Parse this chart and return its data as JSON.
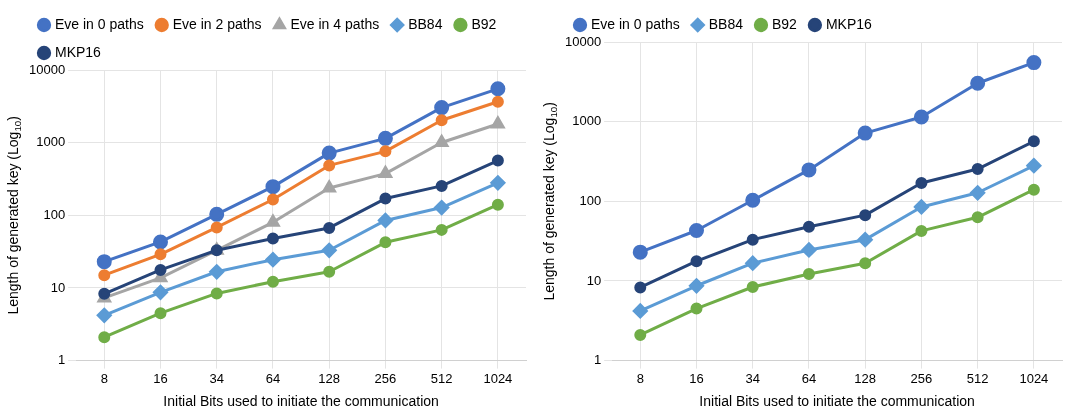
{
  "chart_data": [
    {
      "type": "line",
      "xlabel": "Initial Bits used to initiate the communication",
      "ylabel": "Length of generated key (Log$_{10}$)",
      "categories": [
        "8",
        "16",
        "34",
        "64",
        "128",
        "256",
        "512",
        "1024"
      ],
      "log": "y",
      "ylim": [
        1,
        10000
      ],
      "yticks": [
        1,
        10,
        100,
        1000,
        10000
      ],
      "grid": true,
      "legend": "top",
      "line_style": "solid",
      "series": [
        {
          "name": "Eve in 0 paths",
          "color": "#4472c4",
          "marker": "circle",
          "values": [
            23,
            43,
            103,
            248,
            718,
            1146,
            3035,
            5510
          ]
        },
        {
          "name": "Eve in 2 paths",
          "color": "#ed7d31",
          "marker": "circle",
          "values": [
            15,
            29,
            68,
            165,
            486,
            759,
            2033,
            3650
          ]
        },
        {
          "name": "Eve in 4 paths",
          "color": "#a5a5a5",
          "marker": "triangle",
          "values": [
            7.3,
            13.8,
            33,
            80,
            238,
            375,
            1005,
            1805
          ]
        },
        {
          "name": "BB84",
          "color": "#5b9bd5",
          "marker": "diamond",
          "values": [
            4.2,
            8.7,
            16.7,
            24.5,
            33,
            85,
            128,
            280
          ]
        },
        {
          "name": "B92",
          "color": "#70ad47",
          "marker": "circle",
          "values": [
            2.1,
            4.5,
            8.4,
            12.2,
            16.7,
            42.5,
            63,
            140
          ]
        },
        {
          "name": "MKP16",
          "color": "#264478",
          "marker": "circle",
          "values": [
            8.3,
            17.7,
            33,
            48,
            67,
            170,
            254,
            566
          ]
        }
      ]
    },
    {
      "type": "line",
      "xlabel": "Initial Bits used to initiate the communication",
      "ylabel": "Length of generated key (Log$_{10}$)",
      "categories": [
        "8",
        "16",
        "34",
        "64",
        "128",
        "256",
        "512",
        "1024"
      ],
      "log": "y",
      "ylim": [
        1,
        10000
      ],
      "yticks": [
        1,
        10,
        100,
        1000,
        10000
      ],
      "grid": true,
      "legend": "top",
      "line_style": "solid",
      "series": [
        {
          "name": "Eve in 0 paths",
          "color": "#4472c4",
          "marker": "circle",
          "values": [
            23,
            43,
            103,
            248,
            718,
            1146,
            3035,
            5510
          ]
        },
        {
          "name": "BB84",
          "color": "#5b9bd5",
          "marker": "diamond",
          "values": [
            4.2,
            8.7,
            16.7,
            24.5,
            33,
            85,
            128,
            280
          ]
        },
        {
          "name": "B92",
          "color": "#70ad47",
          "marker": "circle",
          "values": [
            2.1,
            4.5,
            8.4,
            12.2,
            16.7,
            42.5,
            63,
            140
          ]
        },
        {
          "name": "MKP16",
          "color": "#264478",
          "marker": "circle",
          "values": [
            8.3,
            17.7,
            33,
            48,
            67,
            170,
            254,
            566
          ]
        }
      ]
    }
  ]
}
